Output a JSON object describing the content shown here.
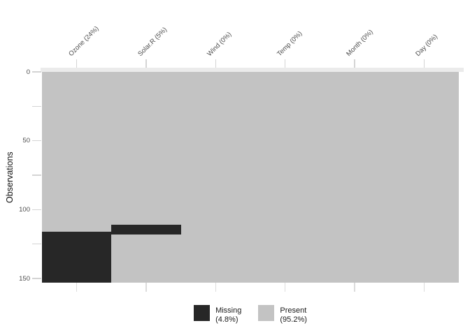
{
  "page": {
    "background": "#ffffff"
  },
  "chart_data": {
    "type": "heatmap",
    "subtype": "missing-data-matrix",
    "ylabel": "Observations",
    "columns": [
      "Ozone (24%)",
      "Solar.R (5%)",
      "Wind (0%)",
      "Temp (0%)",
      "Month (0%)",
      "Day (0%)"
    ],
    "n_observations": 153,
    "ylim": [
      0,
      153
    ],
    "y_ticks_major": [
      0,
      50,
      100,
      150
    ],
    "y_ticks_minor": [
      25,
      75,
      125
    ],
    "grid": false,
    "legend_position": "bottom",
    "colors": {
      "missing": "#272727",
      "present": "#c3c3c3"
    },
    "missing_blocks": [
      {
        "column": "Ozone (24%)",
        "col_index": 0,
        "row_start": 117,
        "row_end": 153,
        "n_missing_rows": 37
      },
      {
        "column": "Solar.R (5%)",
        "col_index": 1,
        "row_start": 112,
        "row_end": 118,
        "n_missing_rows": 7
      }
    ]
  },
  "legend": {
    "items": [
      {
        "label": "Missing",
        "percent": "(4.8%)",
        "swatch": "missing"
      },
      {
        "label": "Present",
        "percent": "(95.2%)",
        "swatch": "present"
      }
    ]
  }
}
